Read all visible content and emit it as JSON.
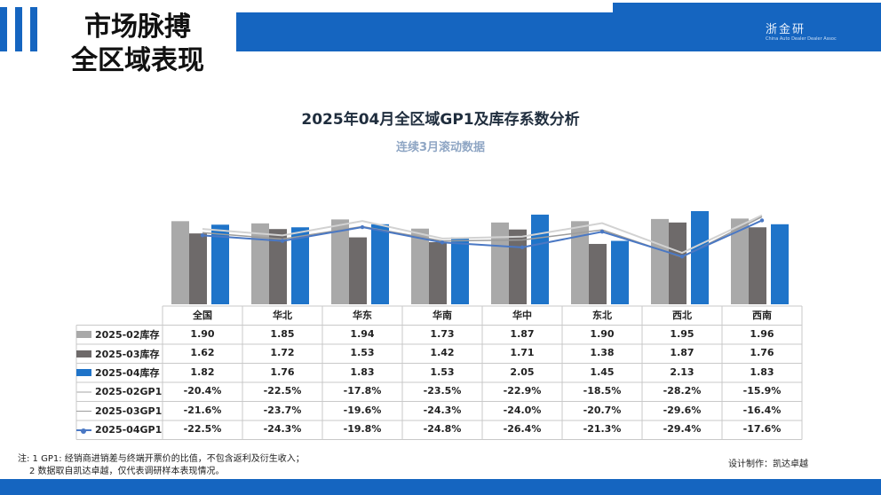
{
  "slide_title": "市场脉搏\n全区域表现",
  "logo": {
    "main": "浙金研",
    "sub": "China Auto Dealer Dealer Assoc"
  },
  "credit": "设计制作：凯达卓越",
  "notes": [
    "注: 1 GP1: 经销商进销差与终端开票价的比值，不包含返利及衍生收入；",
    "2 数据取自凯达卓越，仅代表调研样本表现情况。"
  ],
  "colors": {
    "accent": "#1565c0",
    "bar_02": "#a9a9a9",
    "bar_03": "#6e6a6a",
    "bar_04": "#1f74c9",
    "line_02": "#d2d2d2",
    "line_03": "#9c9c9c",
    "line_04": "#4a78c4"
  },
  "chart_data": {
    "type": "bar",
    "title": "2025年04月全区域GP1及库存系数分析",
    "subtitle": "连续3月滚动数据",
    "categories": [
      "全国",
      "华北",
      "华东",
      "华南",
      "华中",
      "东北",
      "西北",
      "西南"
    ],
    "series": [
      {
        "name": "2025-02库存",
        "type": "bar",
        "values": [
          1.9,
          1.85,
          1.94,
          1.73,
          1.87,
          1.9,
          1.95,
          1.96
        ],
        "labels": [
          "1.90",
          "1.85",
          "1.94",
          "1.73",
          "1.87",
          "1.90",
          "1.95",
          "1.96"
        ]
      },
      {
        "name": "2025-03库存",
        "type": "bar",
        "values": [
          1.62,
          1.72,
          1.53,
          1.42,
          1.71,
          1.38,
          1.87,
          1.76
        ],
        "labels": [
          "1.62",
          "1.72",
          "1.53",
          "1.42",
          "1.71",
          "1.38",
          "1.87",
          "1.76"
        ]
      },
      {
        "name": "2025-04库存",
        "type": "bar",
        "values": [
          1.82,
          1.76,
          1.83,
          1.53,
          2.05,
          1.45,
          2.13,
          1.83
        ],
        "labels": [
          "1.82",
          "1.76",
          "1.83",
          "1.53",
          "2.05",
          "1.45",
          "2.13",
          "1.83"
        ]
      },
      {
        "name": "2025-02GP1",
        "type": "line",
        "values": [
          -20.4,
          -22.5,
          -17.8,
          -23.5,
          -22.9,
          -18.5,
          -28.2,
          -15.9
        ],
        "labels": [
          "-20.4%",
          "-22.5%",
          "-17.8%",
          "-23.5%",
          "-22.9%",
          "-18.5%",
          "-28.2%",
          "-15.9%"
        ]
      },
      {
        "name": "2025-03GP1",
        "type": "line",
        "values": [
          -21.6,
          -23.7,
          -19.6,
          -24.3,
          -24.0,
          -20.7,
          -29.6,
          -16.4
        ],
        "labels": [
          "-21.6%",
          "-23.7%",
          "-19.6%",
          "-24.3%",
          "-24.0%",
          "-20.7%",
          "-29.6%",
          "-16.4%"
        ]
      },
      {
        "name": "2025-04GP1",
        "type": "line",
        "values": [
          -22.5,
          -24.3,
          -19.8,
          -24.8,
          -26.4,
          -21.3,
          -29.4,
          -17.6
        ],
        "labels": [
          "-22.5%",
          "-24.3%",
          "-19.8%",
          "-24.8%",
          "-26.4%",
          "-21.3%",
          "-29.4%",
          "-17.6%"
        ]
      }
    ],
    "bar_axis_range": [
      0,
      2.5
    ],
    "line_axis_range": [
      -45,
      -5
    ],
    "legend": "data-table-left",
    "grid": false
  }
}
